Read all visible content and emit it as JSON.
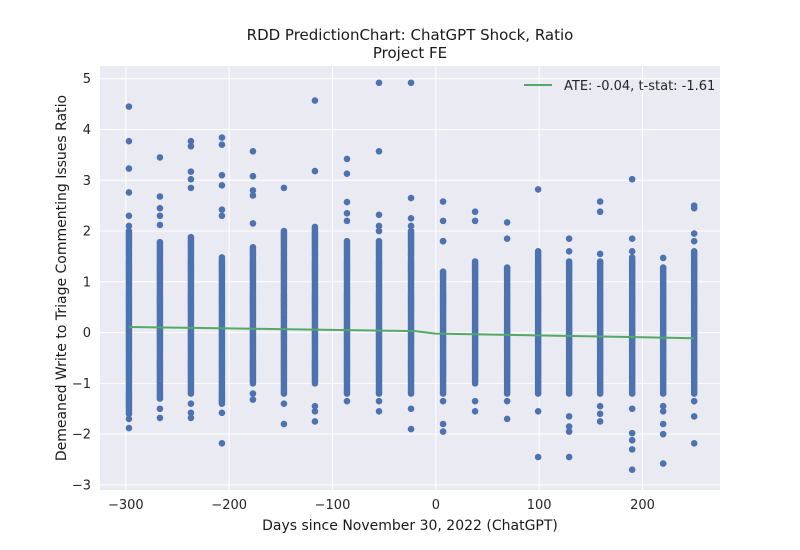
{
  "chart_data": {
    "type": "scatter",
    "title": "RDD PredictionChart: ChatGPT Shock, Ratio",
    "subtitle": "Project FE",
    "xlabel": "Days since November 30, 2022 (ChatGPT)",
    "ylabel": "Demeaned Write to Triage Commenting Issues Ratio",
    "xlim": [
      -325,
      275
    ],
    "ylim": [
      -3.1,
      5.25
    ],
    "x_ticks": [
      -300,
      -200,
      -100,
      0,
      100,
      200
    ],
    "x_tick_labels": [
      "−300",
      "−200",
      "−100",
      "0",
      "100",
      "200"
    ],
    "y_ticks": [
      -3,
      -2,
      -1,
      0,
      1,
      2,
      3,
      4,
      5
    ],
    "y_tick_labels": [
      "−3",
      "−2",
      "−1",
      "0",
      "1",
      "2",
      "3",
      "4",
      "5"
    ],
    "grid": true,
    "legend_position": "top-right",
    "colors": {
      "background": "#eaeaf2",
      "grid": "#ffffff",
      "points": "#4c72b0",
      "fit_line": "#55a868"
    },
    "fit_line": {
      "name": "ATE: -0.04, t-stat: -1.61",
      "x": [
        -297,
        -20,
        0,
        250
      ],
      "y": [
        0.11,
        0.03,
        -0.02,
        -0.11
      ]
    },
    "scatter_columns": [
      {
        "x": -297,
        "y_min": -1.6,
        "y_max": 2.0,
        "outliers": [
          4.45,
          3.77,
          3.23,
          2.76,
          2.3,
          2.1,
          -1.7,
          -1.88
        ]
      },
      {
        "x": -267,
        "y_min": -1.3,
        "y_max": 1.8,
        "outliers": [
          3.45,
          2.68,
          2.45,
          2.3,
          2.12,
          -1.5,
          -1.68
        ]
      },
      {
        "x": -237,
        "y_min": -1.2,
        "y_max": 1.9,
        "outliers": [
          3.77,
          3.67,
          3.17,
          3.02,
          2.85,
          -1.4,
          -1.58,
          -1.68
        ]
      },
      {
        "x": -207,
        "y_min": -1.4,
        "y_max": 1.5,
        "outliers": [
          3.84,
          3.7,
          3.1,
          2.9,
          2.42,
          2.3,
          -1.58,
          -2.18
        ]
      },
      {
        "x": -177,
        "y_min": -1.0,
        "y_max": 1.7,
        "outliers": [
          3.57,
          3.08,
          2.8,
          2.7,
          2.15,
          -1.2,
          -1.32
        ]
      },
      {
        "x": -147,
        "y_min": -1.2,
        "y_max": 2.0,
        "outliers": [
          2.85,
          -1.4,
          -1.8
        ]
      },
      {
        "x": -117,
        "y_min": -1.0,
        "y_max": 2.1,
        "outliers": [
          4.57,
          3.18,
          -1.45,
          -1.55,
          -1.75
        ]
      },
      {
        "x": -86,
        "y_min": -1.2,
        "y_max": 1.8,
        "outliers": [
          3.42,
          3.13,
          2.57,
          2.35,
          2.2,
          -1.35
        ]
      },
      {
        "x": -55,
        "y_min": -1.2,
        "y_max": 1.8,
        "outliers": [
          4.92,
          3.57,
          2.32,
          2.1,
          2.0,
          -1.35,
          -1.55
        ]
      },
      {
        "x": -24,
        "y_min": -1.2,
        "y_max": 2.0,
        "outliers": [
          4.92,
          2.65,
          2.25,
          2.1,
          -1.5,
          -1.9
        ]
      },
      {
        "x": 7,
        "y_min": -1.2,
        "y_max": 1.2,
        "outliers": [
          2.58,
          2.2,
          1.8,
          1.8,
          -1.35,
          -1.8,
          -1.95
        ]
      },
      {
        "x": 38,
        "y_min": -1.0,
        "y_max": 1.4,
        "outliers": [
          2.38,
          2.2,
          -1.35,
          -1.55
        ]
      },
      {
        "x": 69,
        "y_min": -1.2,
        "y_max": 1.3,
        "outliers": [
          2.17,
          1.85,
          -1.35,
          -1.7
        ]
      },
      {
        "x": 99,
        "y_min": -1.2,
        "y_max": 1.6,
        "outliers": [
          2.82,
          -1.55,
          -2.45
        ]
      },
      {
        "x": 129,
        "y_min": -1.2,
        "y_max": 1.4,
        "outliers": [
          1.85,
          1.6,
          -1.65,
          -1.85,
          -1.95,
          -2.45
        ]
      },
      {
        "x": 159,
        "y_min": -1.2,
        "y_max": 1.4,
        "outliers": [
          2.58,
          2.38,
          1.55,
          -1.45,
          -1.6,
          -1.75
        ]
      },
      {
        "x": 190,
        "y_min": -1.2,
        "y_max": 1.5,
        "outliers": [
          3.02,
          1.85,
          1.6,
          -1.5,
          -1.98,
          -2.12,
          -2.3,
          -2.7
        ]
      },
      {
        "x": 220,
        "y_min": -1.2,
        "y_max": 1.3,
        "outliers": [
          1.47,
          -1.45,
          -1.55,
          -1.8,
          -2.0,
          -2.58
        ]
      },
      {
        "x": 250,
        "y_min": -1.2,
        "y_max": 1.6,
        "outliers": [
          2.5,
          2.45,
          1.95,
          1.8,
          -1.35,
          -1.65,
          -2.18
        ]
      }
    ]
  }
}
